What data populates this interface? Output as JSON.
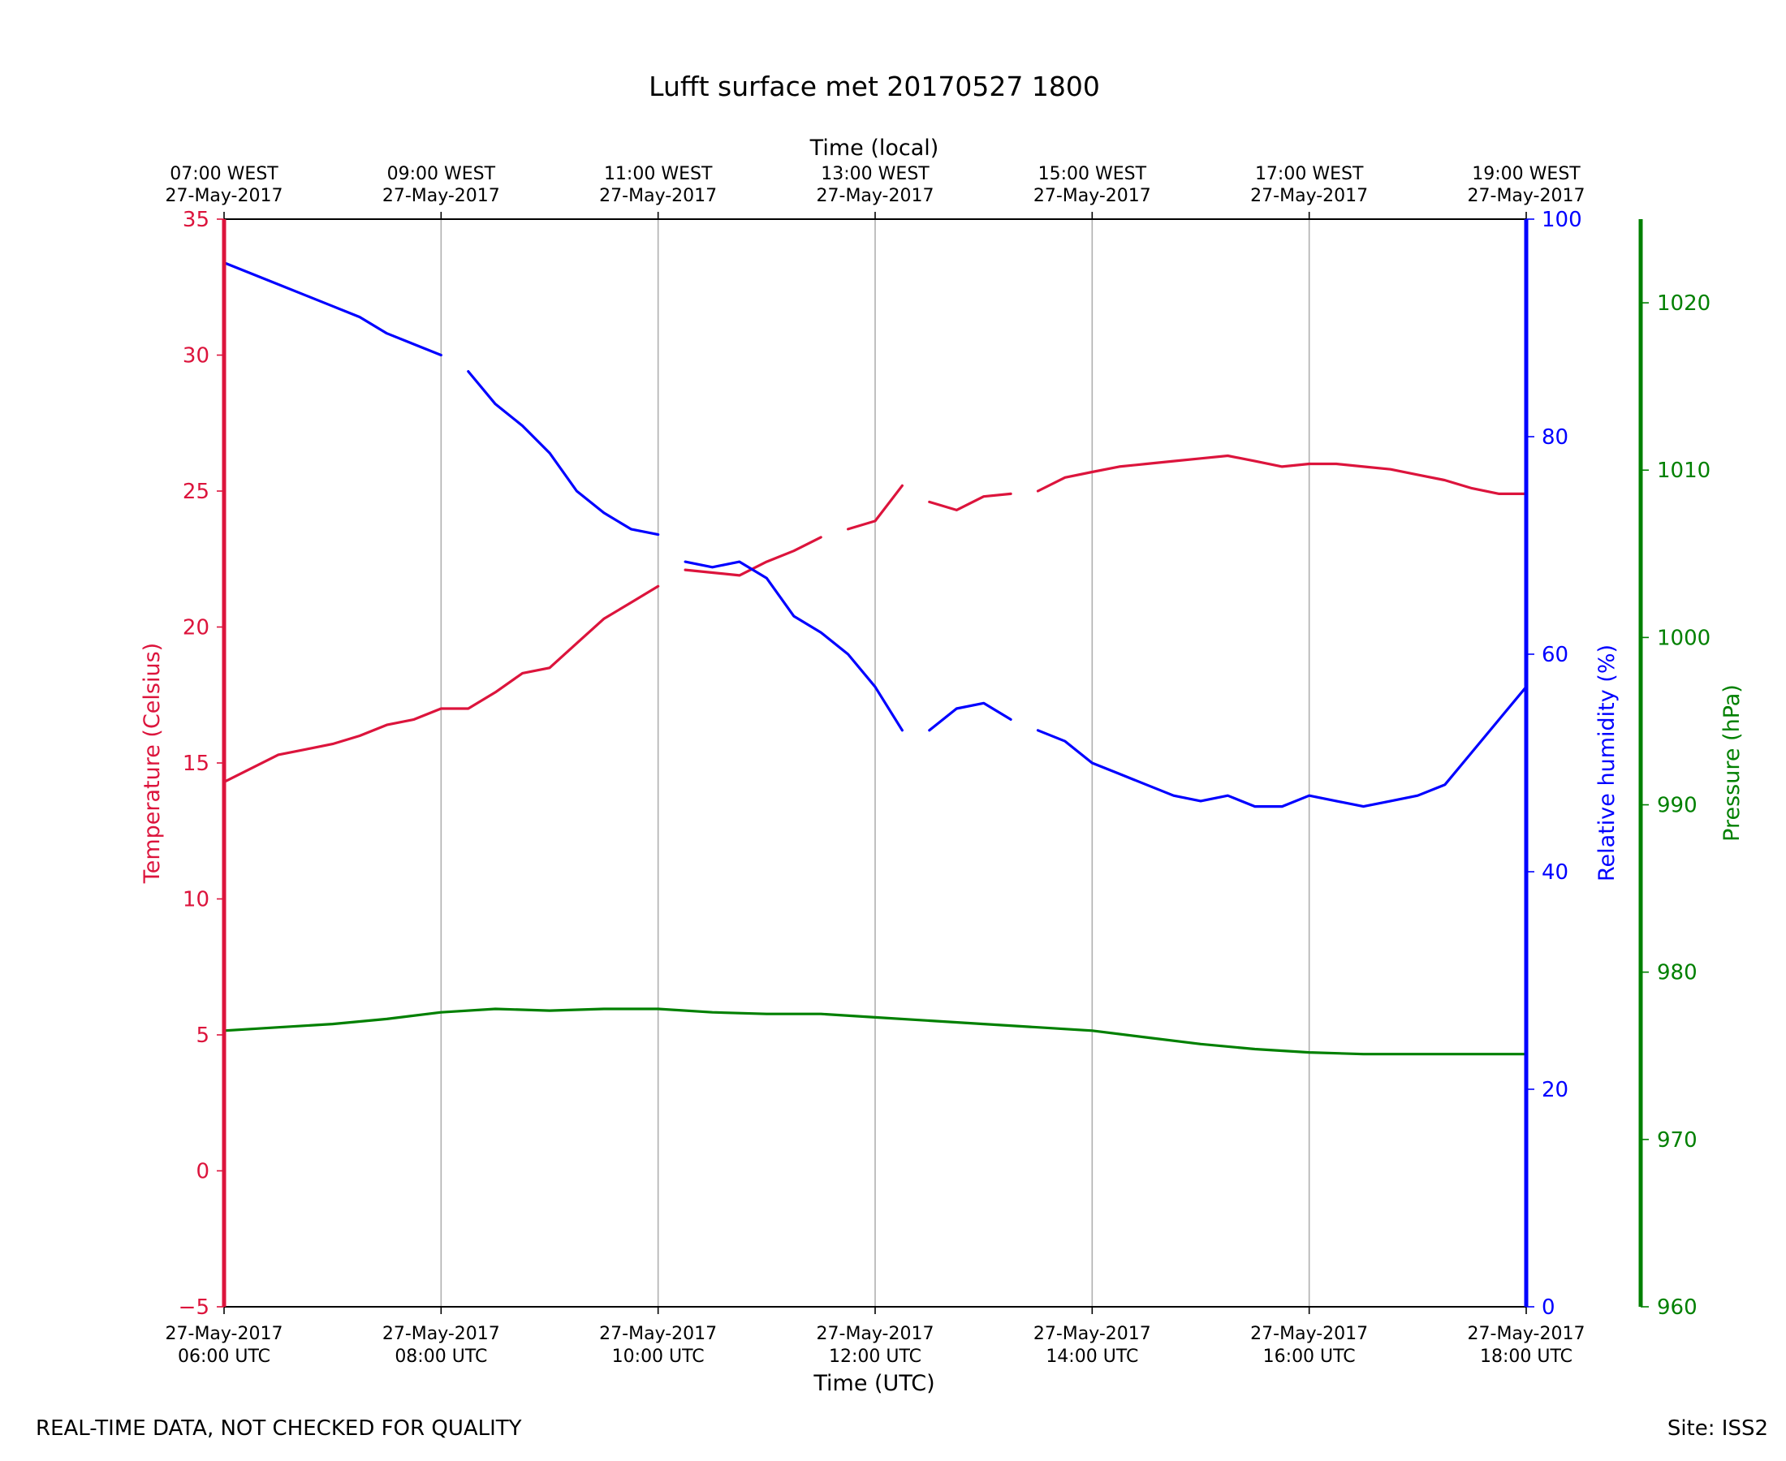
{
  "chart_data": {
    "type": "line",
    "title": "Lufft surface met 20170527 1800",
    "xlabel": "Time (UTC)",
    "xlabel_top": "Time (local)",
    "x_range_hours_utc": [
      6,
      18
    ],
    "x_ticks_bottom": [
      {
        "date": "27-May-2017",
        "time": "06:00 UTC"
      },
      {
        "date": "27-May-2017",
        "time": "08:00 UTC"
      },
      {
        "date": "27-May-2017",
        "time": "10:00 UTC"
      },
      {
        "date": "27-May-2017",
        "time": "12:00 UTC"
      },
      {
        "date": "27-May-2017",
        "time": "14:00 UTC"
      },
      {
        "date": "27-May-2017",
        "time": "16:00 UTC"
      },
      {
        "date": "27-May-2017",
        "time": "18:00 UTC"
      }
    ],
    "x_ticks_top": [
      {
        "time": "07:00 WEST",
        "date": "27-May-2017"
      },
      {
        "time": "09:00 WEST",
        "date": "27-May-2017"
      },
      {
        "time": "11:00 WEST",
        "date": "27-May-2017"
      },
      {
        "time": "13:00 WEST",
        "date": "27-May-2017"
      },
      {
        "time": "15:00 WEST",
        "date": "27-May-2017"
      },
      {
        "time": "17:00 WEST",
        "date": "27-May-2017"
      },
      {
        "time": "19:00 WEST",
        "date": "27-May-2017"
      }
    ],
    "axes": {
      "temperature": {
        "label": "Temperature (Celsius)",
        "color": "#dc143c",
        "ylim": [
          -5,
          35
        ],
        "ticks": [
          -5,
          0,
          5,
          10,
          15,
          20,
          25,
          30,
          35
        ],
        "tick_labels": [
          "−5",
          "0",
          "5",
          "10",
          "15",
          "20",
          "25",
          "30",
          "35"
        ]
      },
      "humidity": {
        "label": "Relative humidity (%)",
        "color": "#0000ff",
        "ylim": [
          0,
          100
        ],
        "ticks": [
          0,
          20,
          40,
          60,
          80,
          100
        ],
        "tick_labels": [
          "0",
          "20",
          "40",
          "60",
          "80",
          "100"
        ]
      },
      "pressure": {
        "label": "Pressure (hPa)",
        "color": "#008000",
        "ylim": [
          960,
          1025
        ],
        "ticks": [
          960,
          970,
          980,
          990,
          1000,
          1010,
          1020
        ],
        "tick_labels": [
          "960",
          "970",
          "980",
          "990",
          "1000",
          "1010",
          "1020"
        ]
      }
    },
    "grid": "vertical",
    "series": [
      {
        "name": "Temperature",
        "axis": "temperature",
        "color": "#dc143c",
        "x": [
          6.0,
          6.25,
          6.5,
          6.75,
          7.0,
          7.25,
          7.5,
          7.75,
          8.0,
          8.25,
          8.5,
          8.75,
          9.0,
          9.25,
          9.5,
          9.75,
          10.0,
          10.25,
          10.5,
          10.75,
          11.0,
          11.25,
          11.5,
          11.75,
          12.0,
          12.25,
          12.5,
          12.75,
          13.0,
          13.25,
          13.5,
          13.75,
          14.0,
          14.25,
          14.5,
          14.75,
          15.0,
          15.25,
          15.5,
          15.75,
          16.0,
          16.25,
          16.5,
          16.75,
          17.0,
          17.25,
          17.5,
          17.75,
          18.0
        ],
        "values": [
          14.3,
          14.8,
          15.3,
          15.5,
          15.7,
          16.0,
          16.4,
          16.6,
          17.0,
          17.0,
          17.6,
          18.3,
          18.5,
          19.4,
          20.3,
          20.9,
          21.5,
          22.1,
          22.0,
          21.9,
          22.4,
          22.8,
          23.3,
          23.6,
          23.9,
          25.2,
          24.6,
          24.3,
          24.8,
          24.9,
          25.0,
          25.5,
          25.7,
          25.9,
          26.0,
          26.1,
          26.2,
          26.3,
          26.1,
          25.9,
          26.0,
          26.0,
          25.9,
          25.8,
          25.6,
          25.4,
          25.1,
          24.9,
          24.9
        ],
        "gaps_after_hours": [
          12.3,
          13.3,
          10.05,
          11.5
        ]
      },
      {
        "name": "Relative humidity",
        "axis": "humidity",
        "color": "#0000ff",
        "x": [
          6.0,
          6.25,
          6.5,
          6.75,
          7.0,
          7.25,
          7.5,
          7.75,
          8.0,
          8.25,
          8.5,
          8.75,
          9.0,
          9.25,
          9.5,
          9.75,
          10.0,
          10.25,
          10.5,
          10.75,
          11.0,
          11.25,
          11.5,
          11.75,
          12.0,
          12.25,
          12.5,
          12.75,
          13.0,
          13.25,
          13.5,
          13.75,
          14.0,
          14.25,
          14.5,
          14.75,
          15.0,
          15.25,
          15.5,
          15.75,
          16.0,
          16.25,
          16.5,
          16.75,
          17.0,
          17.25,
          17.5,
          17.75,
          18.0
        ],
        "values": [
          96,
          95,
          94,
          93,
          92,
          91,
          89.5,
          88.5,
          87.5,
          86,
          83,
          81,
          78.5,
          75,
          73,
          71.5,
          71,
          68.5,
          68,
          68.5,
          67,
          63.5,
          62,
          60,
          57,
          53,
          53,
          55,
          55.5,
          54,
          53,
          52,
          50,
          49,
          48,
          47,
          46.5,
          47,
          46,
          46,
          47,
          46.5,
          46,
          46.5,
          47,
          48,
          51,
          54,
          57
        ],
        "gaps_after_hours": [
          8.0,
          10.0,
          12.3,
          13.3
        ]
      },
      {
        "name": "Pressure",
        "axis": "pressure",
        "color": "#008000",
        "x": [
          6.0,
          6.5,
          7.0,
          7.5,
          8.0,
          8.5,
          9.0,
          9.5,
          10.0,
          10.5,
          11.0,
          11.5,
          12.0,
          12.5,
          13.0,
          13.5,
          14.0,
          14.5,
          15.0,
          15.5,
          16.0,
          16.5,
          17.0,
          17.5,
          18.0
        ],
        "values": [
          976.5,
          976.7,
          976.9,
          977.2,
          977.6,
          977.8,
          977.7,
          977.8,
          977.8,
          977.6,
          977.5,
          977.5,
          977.3,
          977.1,
          976.9,
          976.7,
          976.5,
          976.1,
          975.7,
          975.4,
          975.2,
          975.1,
          975.1,
          975.1,
          975.1
        ]
      }
    ]
  },
  "footer": {
    "left": "REAL-TIME DATA, NOT CHECKED FOR QUALITY",
    "right": "Site: ISS2"
  }
}
